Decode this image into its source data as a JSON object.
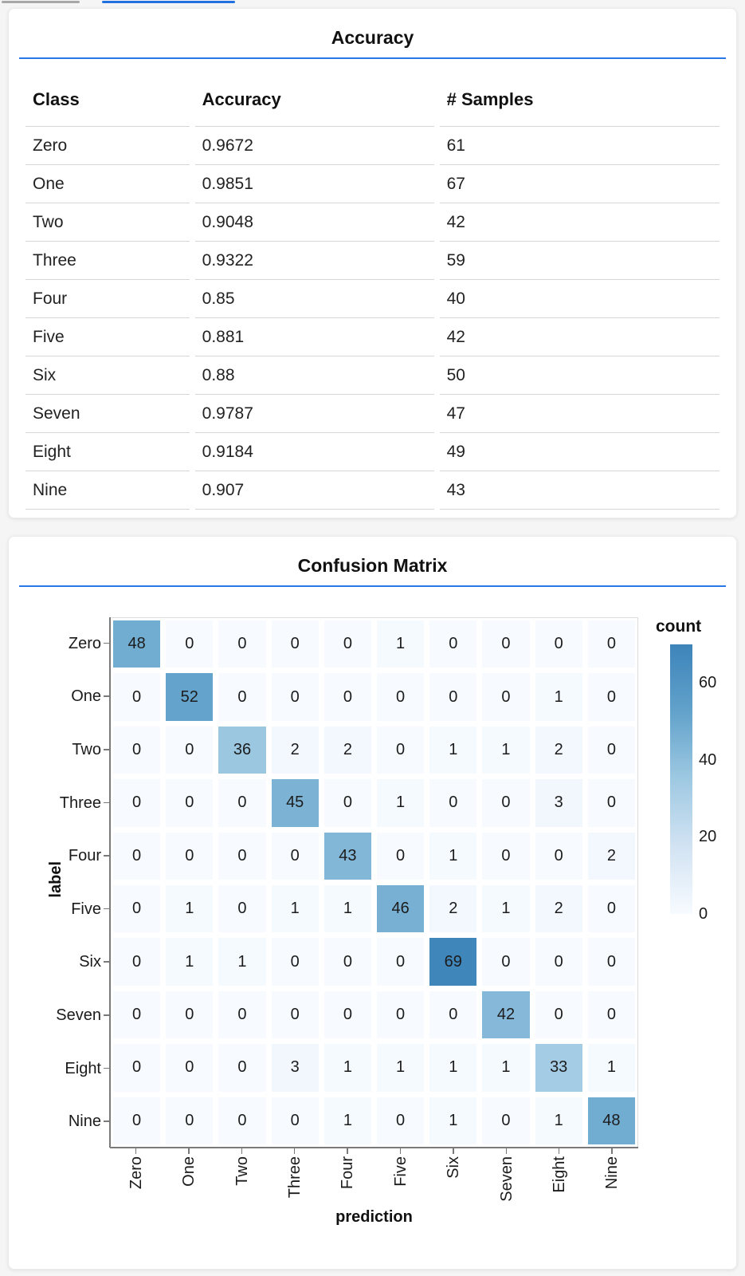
{
  "colors": {
    "accent_blue": "#2878e8",
    "tab_indicator_gray": "#a8a8a8",
    "tab_indicator_blue": "#2172e0",
    "heatmap_low": "#f7fbff",
    "heatmap_high": "#3f86bb"
  },
  "chart_data": [
    {
      "type": "table",
      "title": "Accuracy",
      "columns": [
        "Class",
        "Accuracy",
        "# Samples"
      ],
      "rows": [
        [
          "Zero",
          "0.9672",
          "61"
        ],
        [
          "One",
          "0.9851",
          "67"
        ],
        [
          "Two",
          "0.9048",
          "42"
        ],
        [
          "Three",
          "0.9322",
          "59"
        ],
        [
          "Four",
          "0.85",
          "40"
        ],
        [
          "Five",
          "0.881",
          "42"
        ],
        [
          "Six",
          "0.88",
          "50"
        ],
        [
          "Seven",
          "0.9787",
          "47"
        ],
        [
          "Eight",
          "0.9184",
          "49"
        ],
        [
          "Nine",
          "0.907",
          "43"
        ]
      ]
    },
    {
      "type": "heatmap",
      "title": "Confusion Matrix",
      "xlabel": "prediction",
      "ylabel": "label",
      "categories": [
        "Zero",
        "One",
        "Two",
        "Three",
        "Four",
        "Five",
        "Six",
        "Seven",
        "Eight",
        "Nine"
      ],
      "values": [
        [
          48,
          0,
          0,
          0,
          0,
          1,
          0,
          0,
          0,
          0
        ],
        [
          0,
          52,
          0,
          0,
          0,
          0,
          0,
          0,
          1,
          0
        ],
        [
          0,
          0,
          36,
          2,
          2,
          0,
          1,
          1,
          2,
          0
        ],
        [
          0,
          0,
          0,
          45,
          0,
          1,
          0,
          0,
          3,
          0
        ],
        [
          0,
          0,
          0,
          0,
          43,
          0,
          1,
          0,
          0,
          2
        ],
        [
          0,
          1,
          0,
          1,
          1,
          46,
          2,
          1,
          2,
          0
        ],
        [
          0,
          1,
          1,
          0,
          0,
          0,
          69,
          0,
          0,
          0
        ],
        [
          0,
          0,
          0,
          0,
          0,
          0,
          0,
          42,
          0,
          0
        ],
        [
          0,
          0,
          0,
          3,
          1,
          1,
          1,
          1,
          33,
          1
        ],
        [
          0,
          0,
          0,
          0,
          1,
          0,
          1,
          0,
          1,
          48
        ]
      ],
      "legend": {
        "title": "count",
        "ticks": [
          60,
          40,
          20,
          0
        ],
        "domain": [
          0,
          70
        ],
        "position": "right"
      },
      "grid": false
    }
  ]
}
